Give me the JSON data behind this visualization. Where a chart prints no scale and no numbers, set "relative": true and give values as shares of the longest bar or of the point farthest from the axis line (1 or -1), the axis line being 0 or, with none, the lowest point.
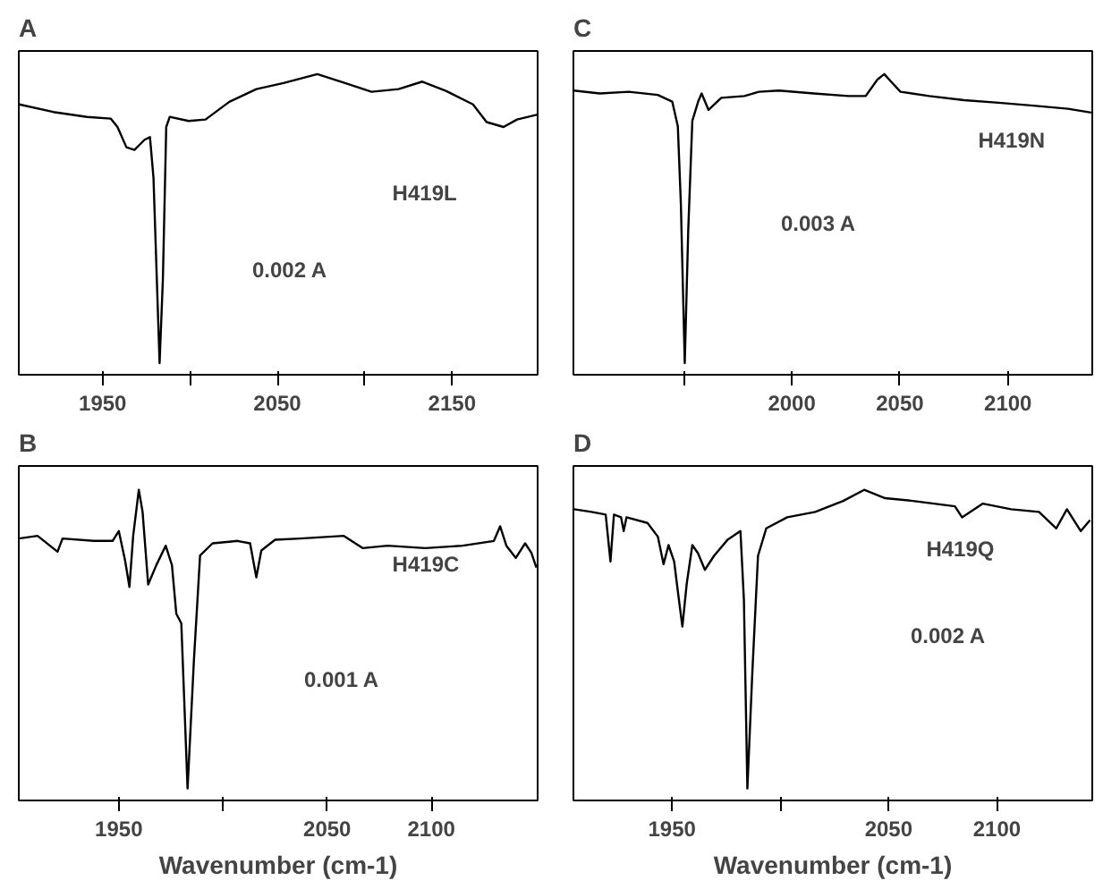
{
  "chart_data": [
    {
      "type": "line",
      "title": "A",
      "relative": true,
      "tick_labels": "x",
      "grid": false,
      "xlim": [
        1902,
        2199
      ],
      "xticks": [
        1950,
        {
          "value": 2000,
          "label": null
        },
        2050,
        {
          "value": 2100,
          "label": null
        },
        2150
      ],
      "annotations": [
        "H419L",
        "0.002 A"
      ],
      "series": [
        {
          "color": "#000000",
          "x": [
            1902.3,
            1921.7,
            1941.1,
            1954.7,
            1958.5,
            1963.6,
            1968.2,
            1974.0,
            1977.1,
            1979.1,
            1981.0,
            1982.6,
            1984.5,
            1986.4,
            1988.4,
            1999.2,
            2008.9,
            2022.5,
            2038.0,
            2053.5,
            2072.9,
            2088.4,
            2103.9,
            2119.4,
            2133.0,
            2146.5,
            2162.0,
            2169.8,
            2179.5,
            2187.2,
            2199
          ],
          "values": [
            0.895,
            0.869,
            0.852,
            0.846,
            0.817,
            0.747,
            0.738,
            0.773,
            0.782,
            0.642,
            0.293,
            0,
            0.293,
            0.817,
            0.852,
            0.838,
            0.843,
            0.904,
            0.948,
            0.969,
            1.0,
            0.97,
            0.939,
            0.948,
            0.974,
            0.942,
            0.895,
            0.834,
            0.817,
            0.843,
            0.86
          ]
        }
      ]
    },
    {
      "type": "line",
      "title": "C",
      "relative": true,
      "tick_labels": "x",
      "grid": false,
      "xlim": [
        1899,
        2139
      ],
      "xticks": [
        {
          "value": 1950,
          "label": null
        },
        2000,
        2050,
        2100
      ],
      "annotations": [
        "H419N",
        "0.003 A"
      ],
      "series": [
        {
          "color": "#000000",
          "x": [
            1899.2,
            1911.2,
            1924.6,
            1938.0,
            1944.7,
            1947.3,
            1948.7,
            1950.5,
            1952.1,
            1954.0,
            1956.7,
            1958.3,
            1961.5,
            1967.4,
            1978.1,
            1984.8,
            1994.1,
            2010.2,
            2026.2,
            2034.2,
            2039.6,
            2042.8,
            2046.3,
            2050.3,
            2063.6,
            2079.7,
            2095.7,
            2111.8,
            2127.8,
            2138.5
          ],
          "values": [
            0.943,
            0.933,
            0.939,
            0.928,
            0.905,
            0.819,
            0.552,
            0,
            0.457,
            0.838,
            0.905,
            0.933,
            0.876,
            0.918,
            0.924,
            0.939,
            0.943,
            0.933,
            0.924,
            0.924,
            0.981,
            1.0,
            0.971,
            0.939,
            0.924,
            0.91,
            0.901,
            0.891,
            0.88,
            0.867
          ]
        }
      ]
    },
    {
      "type": "line",
      "title": "B",
      "xlabel": "Wavenumber (cm-1)",
      "relative": true,
      "tick_labels": "x",
      "grid": false,
      "xlim": [
        1902,
        2151
      ],
      "xticks": [
        1950,
        {
          "value": 2000,
          "label": null
        },
        2050,
        2100
      ],
      "annotations": [
        "H419C",
        "0.001 A"
      ],
      "series": [
        {
          "color": "#000000",
          "x": [
            1902,
            1911,
            1920.6,
            1923,
            1938,
            1947,
            1950,
            1953,
            1955.1,
            1956.9,
            1959.6,
            1961.4,
            1964.1,
            1968,
            1972.5,
            1975.5,
            1977.6,
            1980,
            1983,
            1986,
            1989,
            1995,
            2007,
            2013,
            2016,
            2018.4,
            2025,
            2037,
            2058,
            2067,
            2079,
            2097,
            2115,
            2130,
            2133,
            2136,
            2140.5,
            2145,
            2148,
            2150.4
          ],
          "values": [
            0.837,
            0.846,
            0.793,
            0.837,
            0.829,
            0.829,
            0.862,
            0.764,
            0.675,
            0.846,
            1.0,
            0.927,
            0.683,
            0.748,
            0.813,
            0.748,
            0.585,
            0.553,
            0,
            0.423,
            0.78,
            0.821,
            0.829,
            0.821,
            0.707,
            0.797,
            0.833,
            0.837,
            0.846,
            0.805,
            0.813,
            0.805,
            0.813,
            0.829,
            0.878,
            0.813,
            0.772,
            0.821,
            0.789,
            0.74
          ]
        }
      ]
    },
    {
      "type": "line",
      "title": "D",
      "xlabel": "Wavenumber (cm-1)",
      "relative": true,
      "tick_labels": "x",
      "grid": false,
      "xlim": [
        1904.5,
        2144
      ],
      "xticks": [
        1950,
        {
          "value": 2000,
          "label": null
        },
        2050,
        2100
      ],
      "annotations": [
        "H419Q",
        "0.002 A"
      ],
      "series": [
        {
          "color": "#000000",
          "x": [
            1904.8,
            1912.9,
            1919.4,
            1921.6,
            1923.2,
            1926.5,
            1927.7,
            1929,
            1938.7,
            1943.5,
            1946.1,
            1948.4,
            1951,
            1952.9,
            1954.8,
            1956.8,
            1959.4,
            1962,
            1965.2,
            1969.4,
            1975.8,
            1981.6,
            1983.2,
            1984.8,
            1987.1,
            1989.7,
            1993.5,
            2003.2,
            2016.1,
            2029,
            2038.7,
            2048.4,
            2061.3,
            2080.6,
            2083.9,
            2093.5,
            2106.5,
            2119.4,
            2127.4,
            2132.3,
            2138.7,
            2143
          ],
          "values": [
            0.935,
            0.926,
            0.917,
            0.76,
            0.917,
            0.908,
            0.862,
            0.908,
            0.889,
            0.843,
            0.751,
            0.815,
            0.76,
            0.649,
            0.542,
            0.686,
            0.815,
            0.788,
            0.732,
            0.779,
            0.834,
            0.862,
            0.631,
            0,
            0.391,
            0.779,
            0.871,
            0.908,
            0.926,
            0.963,
            1.0,
            0.972,
            0.963,
            0.945,
            0.908,
            0.954,
            0.935,
            0.926,
            0.871,
            0.935,
            0.862,
            0.899
          ]
        }
      ]
    }
  ]
}
